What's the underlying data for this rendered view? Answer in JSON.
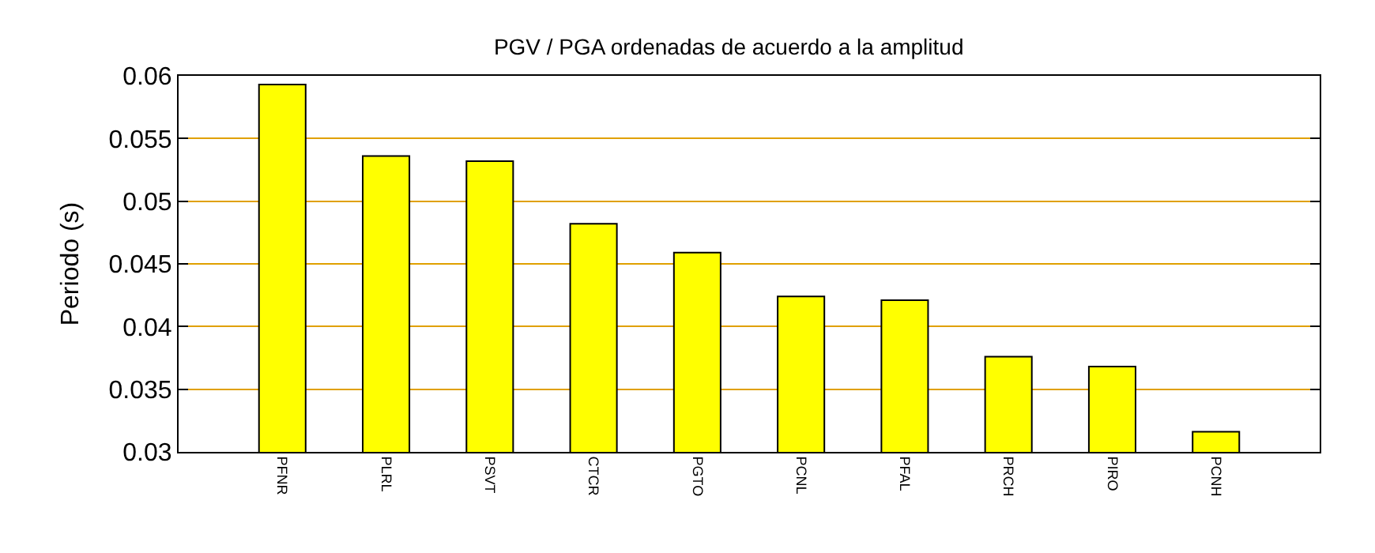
{
  "chart_data": {
    "type": "bar",
    "title": "PGV / PGA ordenadas de acuerdo a la amplitud",
    "ylabel": "Periodo (s)",
    "categories": [
      "PFNR",
      "PLRL",
      "PSVT",
      "CTCR",
      "PGTO",
      "PCNL",
      "PFAL",
      "PRCH",
      "PIRO",
      "PCNH"
    ],
    "values": [
      0.0593,
      0.0536,
      0.0532,
      0.0482,
      0.0459,
      0.0424,
      0.0421,
      0.0376,
      0.0368,
      0.0316
    ],
    "color": "#ffff00",
    "ylim": [
      0.03,
      0.06
    ],
    "yticks": [
      0.03,
      0.035,
      0.04,
      0.045,
      0.05,
      0.055,
      0.06
    ],
    "grid": "y"
  }
}
